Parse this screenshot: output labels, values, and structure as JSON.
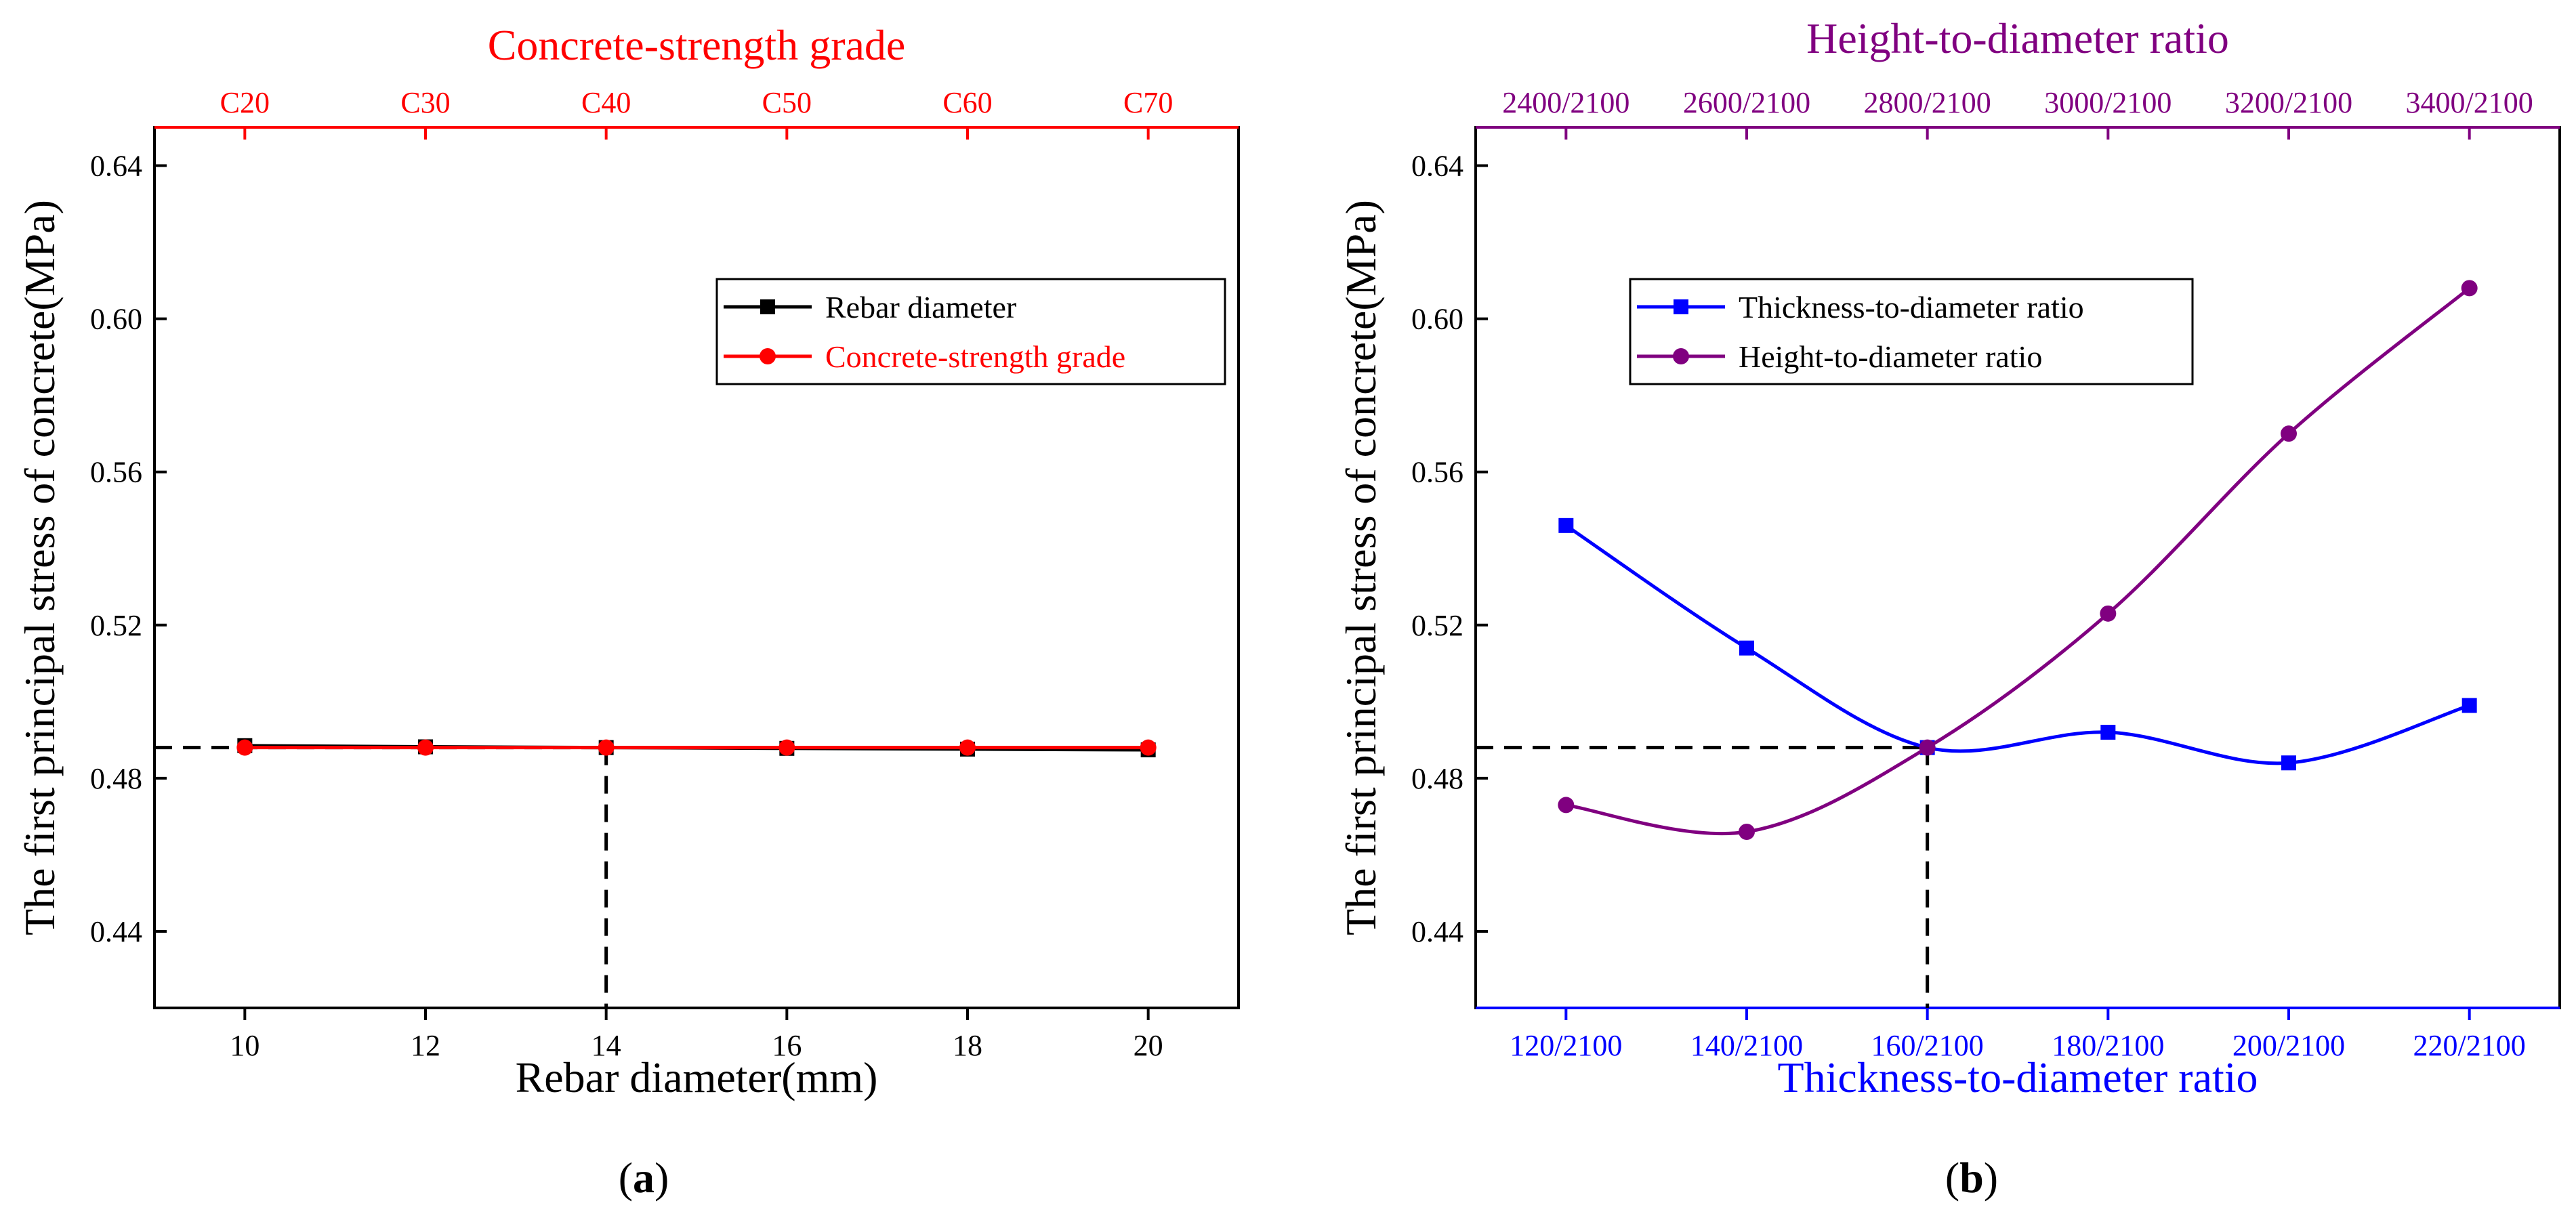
{
  "chart_data": [
    {
      "panel": "a",
      "caption": "(a)",
      "caption_letter": "a",
      "type": "line",
      "ylabel": "The first principal stress of concrete(MPa)",
      "ylim": [
        0.42,
        0.65
      ],
      "y_ticks": [
        0.44,
        0.48,
        0.52,
        0.56,
        0.6,
        0.64
      ],
      "y_tick_labels": [
        "0.44",
        "0.48",
        "0.52",
        "0.56",
        "0.60",
        "0.64"
      ],
      "x_bottom": {
        "label": "Rebar diameter(mm)",
        "range": [
          9,
          21
        ],
        "ticks": [
          10,
          12,
          14,
          16,
          18,
          20
        ],
        "tick_labels": [
          "10",
          "12",
          "14",
          "16",
          "18",
          "20"
        ],
        "color": "#000000"
      },
      "x_top": {
        "label": "Concrete-strength grade",
        "tick_labels": [
          "C20",
          "C30",
          "C40",
          "C50",
          "C60",
          "C70"
        ],
        "color": "#ff0000"
      },
      "legend": {
        "position": "center-right"
      },
      "series": [
        {
          "name": "Rebar diameter",
          "marker": "square",
          "color": "#000000",
          "x": [
            10,
            12,
            14,
            16,
            18,
            20
          ],
          "values": [
            0.4885,
            0.4882,
            0.488,
            0.4878,
            0.4876,
            0.4874
          ]
        },
        {
          "name": "Concrete-strength grade",
          "marker": "circle",
          "color": "#ff0000",
          "x": [
            10,
            12,
            14,
            16,
            18,
            20
          ],
          "values": [
            0.488,
            0.488,
            0.488,
            0.488,
            0.488,
            0.488
          ]
        }
      ],
      "reference": {
        "x": 14,
        "y": 0.488
      }
    },
    {
      "panel": "b",
      "caption": "(b)",
      "caption_letter": "b",
      "type": "line",
      "ylabel": "The first principal stress of concrete(MPa)",
      "ylim": [
        0.42,
        0.65
      ],
      "y_ticks": [
        0.44,
        0.48,
        0.52,
        0.56,
        0.6,
        0.64
      ],
      "y_tick_labels": [
        "0.44",
        "0.48",
        "0.52",
        "0.56",
        "0.60",
        "0.64"
      ],
      "x_bottom": {
        "label": "Thickness-to-diameter ratio",
        "range": [
          0.5,
          6.5
        ],
        "ticks": [
          1,
          2,
          3,
          4,
          5,
          6
        ],
        "tick_labels": [
          "120/2100",
          "140/2100",
          "160/2100",
          "180/2100",
          "200/2100",
          "220/2100"
        ],
        "color": "#0000ff"
      },
      "x_top": {
        "label": "Height-to-diameter ratio",
        "tick_labels": [
          "2400/2100",
          "2600/2100",
          "2800/2100",
          "3000/2100",
          "3200/2100",
          "3400/2100"
        ],
        "color": "#800080"
      },
      "legend": {
        "position": "top-center"
      },
      "series": [
        {
          "name": "Thickness-to-diameter ratio",
          "marker": "square",
          "color": "#0000ff",
          "x": [
            1,
            2,
            3,
            4,
            5,
            6
          ],
          "values": [
            0.546,
            0.514,
            0.488,
            0.492,
            0.484,
            0.499
          ]
        },
        {
          "name": "Height-to-diameter ratio",
          "marker": "circle",
          "color": "#800080",
          "x": [
            1,
            2,
            3,
            4,
            5,
            6
          ],
          "values": [
            0.473,
            0.466,
            0.488,
            0.523,
            0.57,
            0.608
          ]
        }
      ],
      "reference": {
        "x": 3,
        "y": 0.488
      }
    }
  ]
}
